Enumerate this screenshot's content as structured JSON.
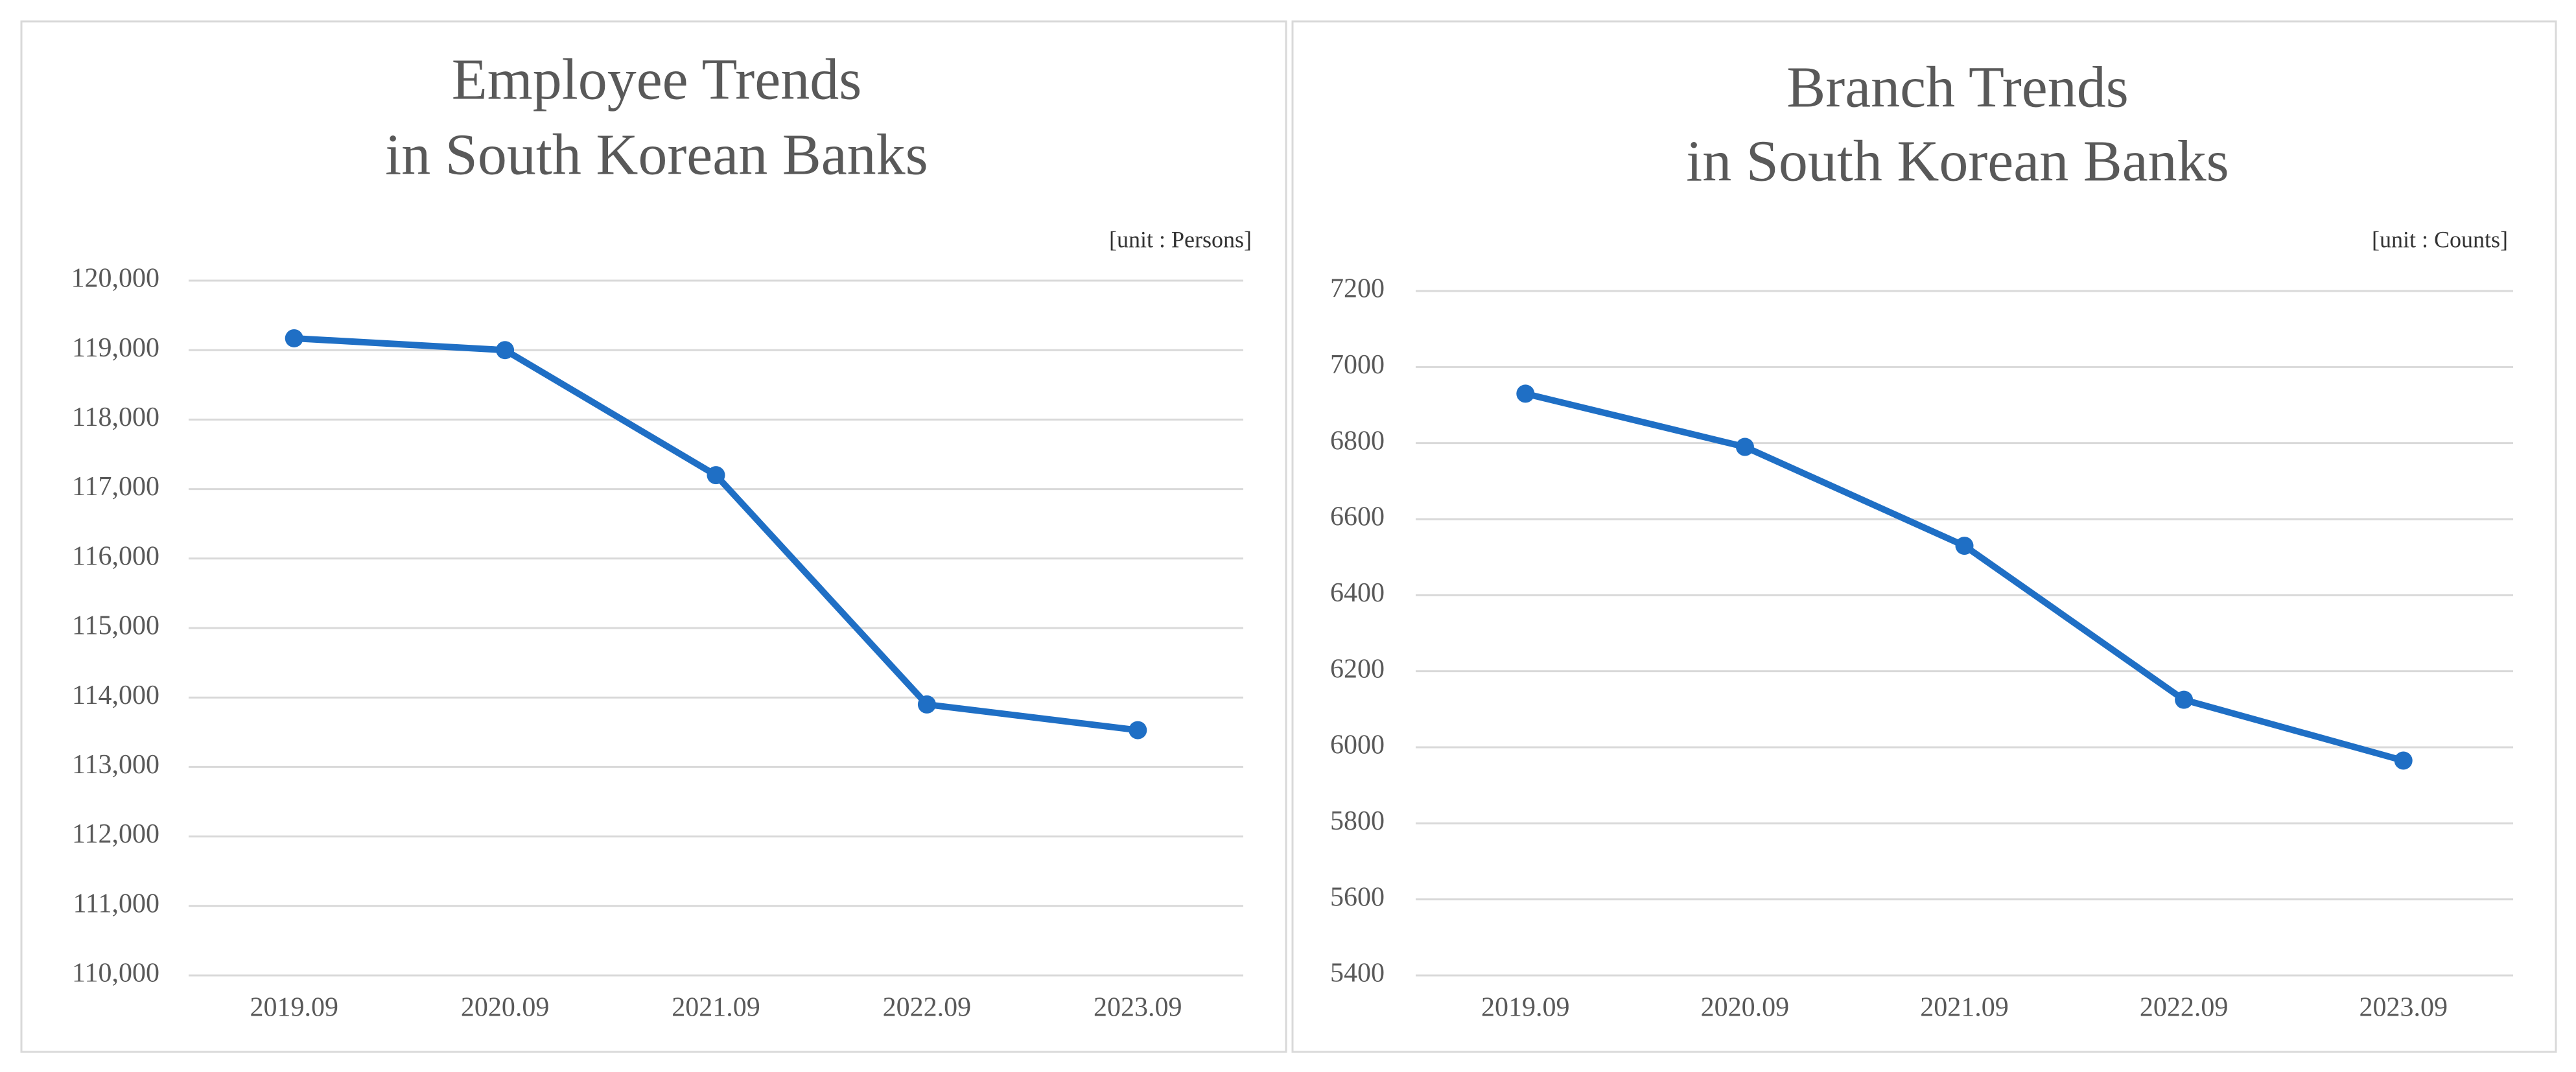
{
  "chart_data": [
    {
      "type": "line",
      "title": [
        "Employee Trends",
        "in South Korean Banks"
      ],
      "unit_label": "[unit : Persons]",
      "categories": [
        "2019.09",
        "2020.09",
        "2021.09",
        "2022.09",
        "2023.09"
      ],
      "values": [
        119170,
        119000,
        117200,
        113900,
        113530
      ],
      "color": "#1f6fc5",
      "ylim": [
        110000,
        120000
      ],
      "yticks": [
        {
          "value": 110000,
          "label": "110,000"
        },
        {
          "value": 111000,
          "label": "111,000"
        },
        {
          "value": 112000,
          "label": "112,000"
        },
        {
          "value": 113000,
          "label": "113,000"
        },
        {
          "value": 114000,
          "label": "114,000"
        },
        {
          "value": 115000,
          "label": "115,000"
        },
        {
          "value": 116000,
          "label": "116,000"
        },
        {
          "value": 117000,
          "label": "117,000"
        },
        {
          "value": 118000,
          "label": "118,000"
        },
        {
          "value": 119000,
          "label": "119,000"
        },
        {
          "value": 120000,
          "label": "120,000"
        }
      ],
      "grid": true
    },
    {
      "type": "line",
      "title": [
        "Branch Trends",
        "in South Korean Banks"
      ],
      "unit_label": "[unit : Counts]",
      "categories": [
        "2019.09",
        "2020.09",
        "2021.09",
        "2022.09",
        "2023.09"
      ],
      "values": [
        6930,
        6790,
        6530,
        6125,
        5965
      ],
      "color": "#1f6fc5",
      "ylim": [
        5400,
        7200
      ],
      "yticks": [
        5400,
        5600,
        5800,
        6000,
        6200,
        6400,
        6600,
        6800,
        7000,
        7200
      ],
      "grid": true
    }
  ]
}
